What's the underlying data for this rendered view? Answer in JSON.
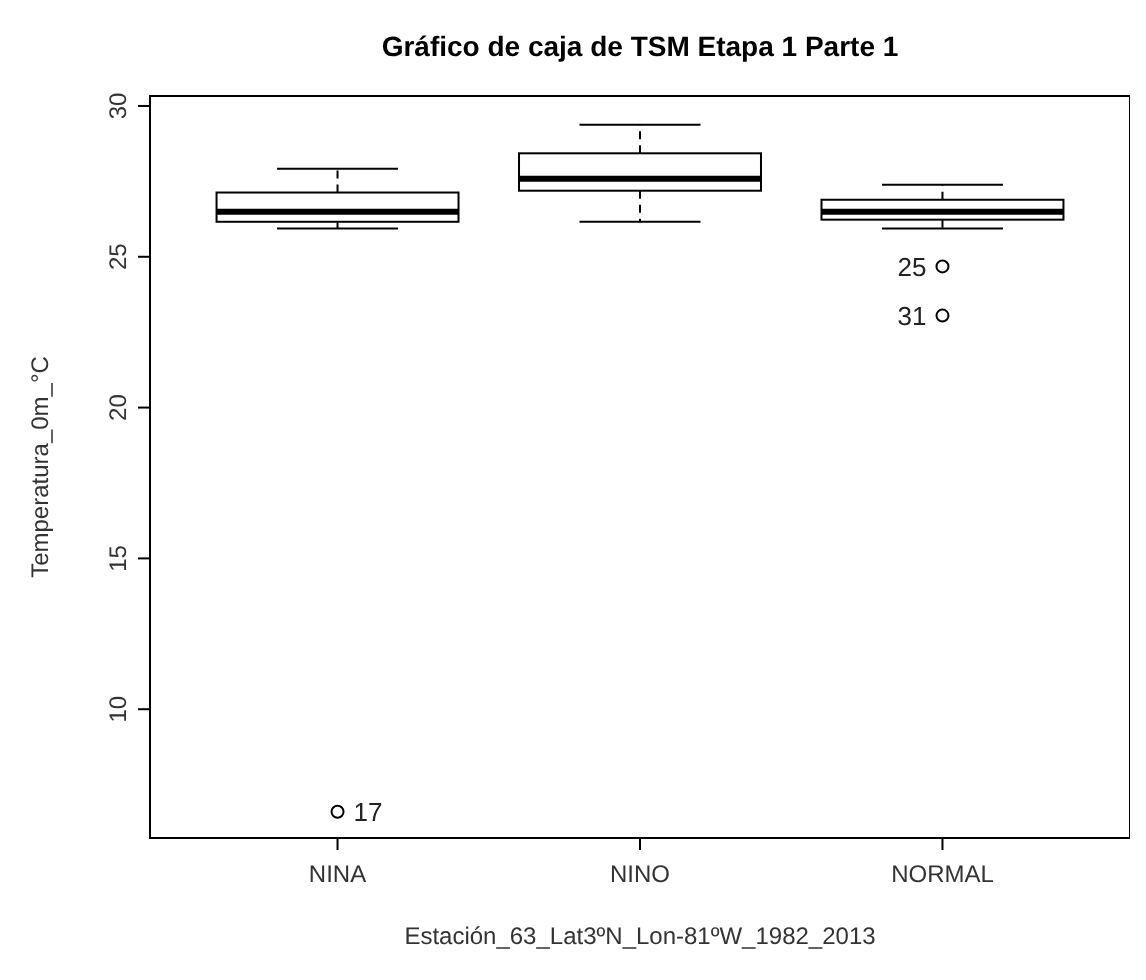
{
  "chart_data": {
    "type": "box",
    "title": "Gráfico de caja de TSM Etapa 1 Parte 1",
    "xlabel": "Estación_63_Lat3ºN_Lon-81ºW_1982_2013",
    "ylabel": "Temperatura_0m_°C",
    "categories": [
      "NINA",
      "NINO",
      "NORMAL"
    ],
    "boxes": [
      {
        "low": 25.94,
        "q1": 26.16,
        "median": 26.49,
        "q3": 27.13,
        "high": 27.92,
        "outliers": [
          6.6
        ]
      },
      {
        "low": 26.16,
        "q1": 27.19,
        "median": 27.59,
        "q3": 28.43,
        "high": 29.38
      },
      {
        "low": 25.94,
        "q1": 26.23,
        "median": 26.49,
        "q3": 26.89,
        "high": 27.39,
        "outliers": [
          24.68,
          23.05
        ]
      }
    ],
    "ylim": [
      5.73,
      30.33
    ],
    "yticks": [
      10,
      15,
      20,
      25,
      30
    ],
    "annotations": [
      "17",
      "25",
      "31"
    ]
  }
}
